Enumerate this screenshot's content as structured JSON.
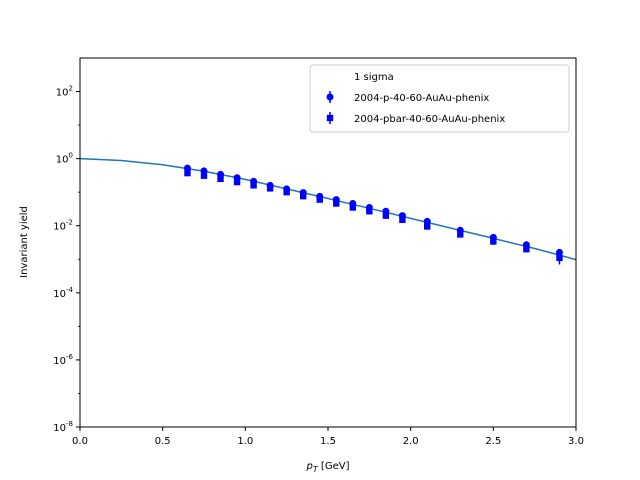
{
  "chart_data": {
    "type": "scatter",
    "title": "",
    "xlabel": "p_T [GeV]",
    "ylabel": "Invariant yield",
    "xlim": [
      0.0,
      3.0
    ],
    "ylim": [
      1e-08,
      1000
    ],
    "yscale": "log",
    "grid": false,
    "xticks": [
      "0.0",
      "0.5",
      "1.0",
      "1.5",
      "2.0",
      "2.5",
      "3.0"
    ],
    "yticks": [
      {
        "value": 1e-08,
        "label": "10",
        "exp": "-8"
      },
      {
        "value": 1e-06,
        "label": "10",
        "exp": "-6"
      },
      {
        "value": 0.0001,
        "label": "10",
        "exp": "-4"
      },
      {
        "value": 0.01,
        "label": "10",
        "exp": "-2"
      },
      {
        "value": 1,
        "label": "10",
        "exp": "0"
      },
      {
        "value": 100,
        "label": "10",
        "exp": "2"
      }
    ],
    "legend": {
      "placement": "upper right",
      "title": "1 sigma"
    },
    "series": [
      {
        "name": "2004-p-40-60-AuAu-phenix",
        "marker": "circle",
        "color": "#0000ff",
        "x": [
          0.65,
          0.75,
          0.85,
          0.95,
          1.05,
          1.15,
          1.25,
          1.35,
          1.45,
          1.55,
          1.65,
          1.75,
          1.85,
          1.95,
          2.1,
          2.3,
          2.5,
          2.7,
          2.9
        ],
        "y": [
          0.52,
          0.43,
          0.34,
          0.27,
          0.21,
          0.16,
          0.125,
          0.097,
          0.075,
          0.06,
          0.046,
          0.035,
          0.027,
          0.02,
          0.0135,
          0.0073,
          0.0045,
          0.0027,
          0.0016
        ],
        "yerr": [
          0.06,
          0.05,
          0.04,
          0.03,
          0.025,
          0.02,
          0.015,
          0.012,
          0.009,
          0.007,
          0.006,
          0.005,
          0.004,
          0.003,
          0.002,
          0.0012,
          0.0008,
          0.0005,
          0.0004
        ]
      },
      {
        "name": "2004-pbar-40-60-AuAu-phenix",
        "marker": "square",
        "color": "#0000ff",
        "x": [
          0.65,
          0.75,
          0.85,
          0.95,
          1.05,
          1.15,
          1.25,
          1.35,
          1.45,
          1.55,
          1.65,
          1.75,
          1.85,
          1.95,
          2.1,
          2.3,
          2.5,
          2.7,
          2.9
        ],
        "y": [
          0.37,
          0.31,
          0.25,
          0.2,
          0.16,
          0.13,
          0.1,
          0.076,
          0.06,
          0.046,
          0.035,
          0.027,
          0.02,
          0.015,
          0.0095,
          0.0055,
          0.0034,
          0.002,
          0.0011
        ],
        "yerr": [
          0.05,
          0.04,
          0.035,
          0.03,
          0.025,
          0.02,
          0.015,
          0.011,
          0.009,
          0.007,
          0.006,
          0.005,
          0.004,
          0.003,
          0.0018,
          0.001,
          0.0007,
          0.0004,
          0.0004
        ]
      },
      {
        "name": "",
        "type": "line",
        "color": "#1f77b4",
        "x": [
          0.0,
          0.25,
          0.5,
          0.75,
          1.0,
          1.25,
          1.5,
          1.75,
          2.0,
          2.25,
          2.5,
          2.75,
          3.0
        ],
        "y": [
          1.0,
          0.88,
          0.66,
          0.42,
          0.24,
          0.125,
          0.065,
          0.033,
          0.0165,
          0.0083,
          0.0042,
          0.0021,
          0.00098
        ]
      }
    ]
  }
}
